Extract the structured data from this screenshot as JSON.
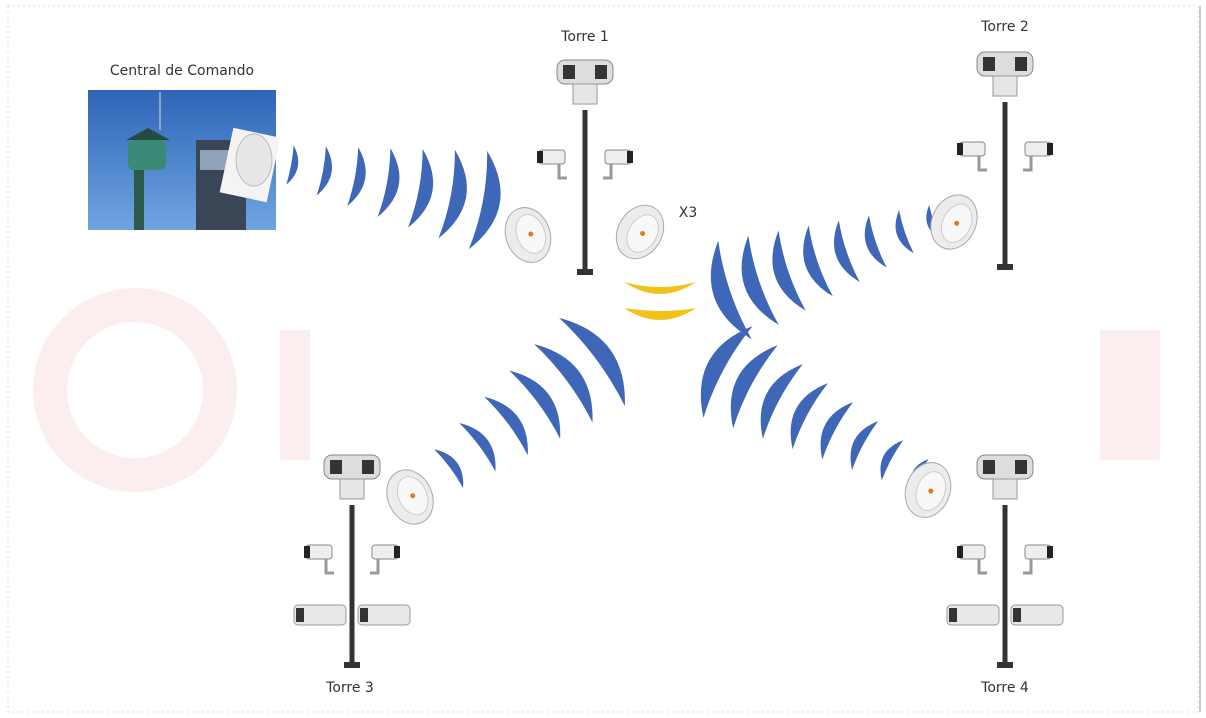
{
  "command_center": {
    "label": "Central de Comando"
  },
  "towers": [
    {
      "label": "Torre 1"
    },
    {
      "label": "Torre 2"
    },
    {
      "label": "Torre 3"
    },
    {
      "label": "Torre 4"
    }
  ],
  "hub": {
    "label": "X3"
  }
}
